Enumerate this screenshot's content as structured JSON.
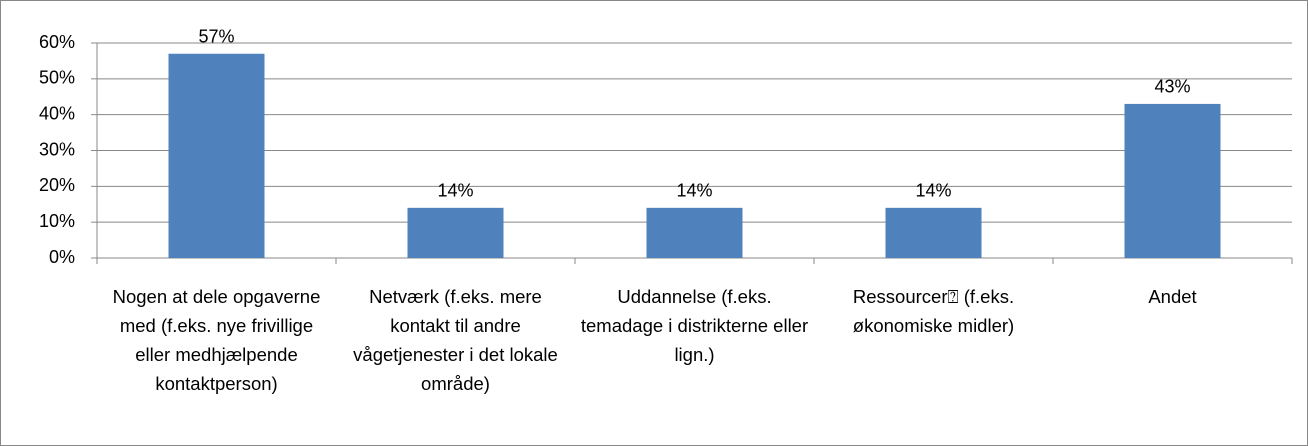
{
  "chart_data": {
    "type": "bar",
    "categories": [
      "Nogen at dele opgaverne med (f.eks. nye frivillige eller medhjælpende kontaktperson)",
      "Netværk (f.eks. mere kontakt til andre vågetjenester i det lokale område)",
      "Uddannelse (f.eks. temadage i distrikterne eller lign.)",
      "Ressourcer⍰ (f.eks. økonomiske midler)",
      "Andet"
    ],
    "values": [
      57,
      14,
      14,
      14,
      43
    ],
    "value_labels": [
      "57%",
      "14%",
      "14%",
      "14%",
      "43%"
    ],
    "color": "#4f81bd",
    "ylim": [
      0,
      60
    ],
    "yticks": [
      {
        "value": 0,
        "label": "0%"
      },
      {
        "value": 10,
        "label": "10%"
      },
      {
        "value": 20,
        "label": "20%"
      },
      {
        "value": 30,
        "label": "30%"
      },
      {
        "value": 40,
        "label": "40%"
      },
      {
        "value": 50,
        "label": "50%"
      },
      {
        "value": 60,
        "label": "60%"
      }
    ],
    "grid": true
  }
}
